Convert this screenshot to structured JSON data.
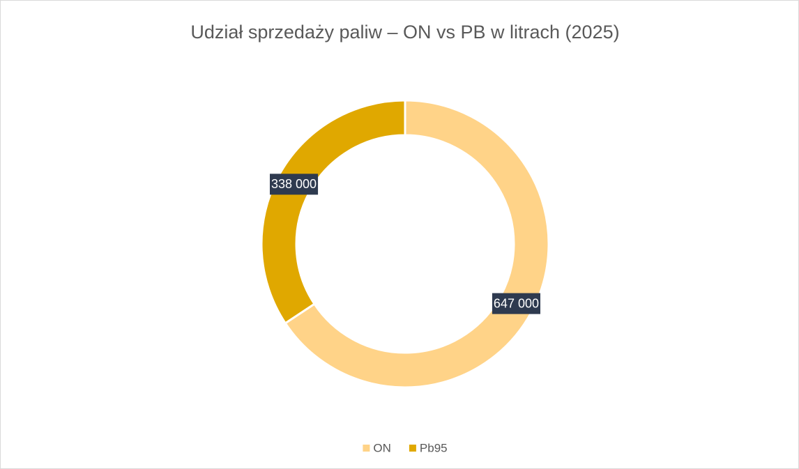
{
  "chart_data": {
    "type": "doughnut",
    "title": "Udział sprzedaży paliw – ON vs PB w litrach (2025)",
    "categories": [
      "ON",
      "Pb95"
    ],
    "values": [
      647000,
      338000
    ],
    "value_labels": [
      "647 000",
      "338 000"
    ],
    "colors": [
      "#FFD388",
      "#E0A800"
    ],
    "legend": "bottom"
  }
}
